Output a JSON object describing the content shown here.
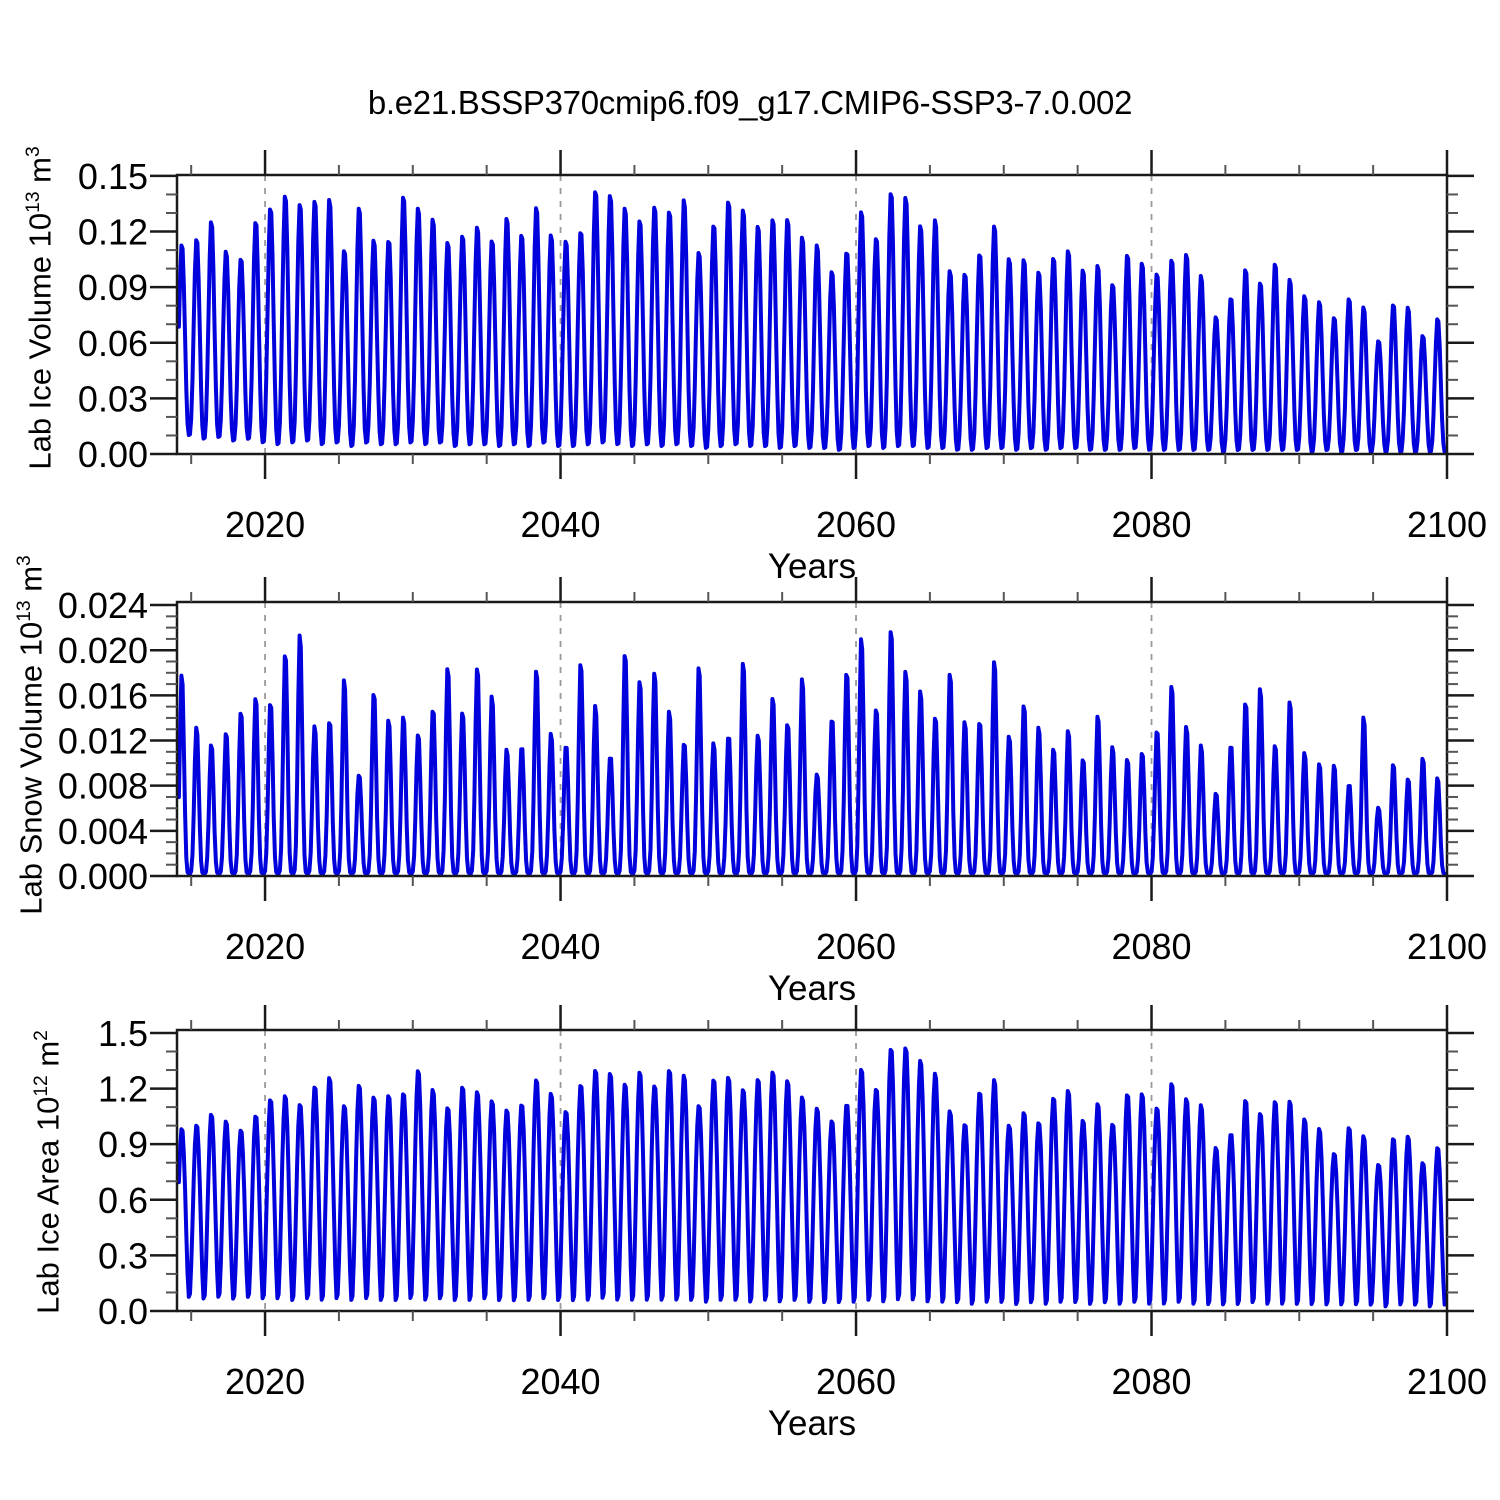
{
  "title": "b.e21.BSSP370cmip6.f09_g17.CMIP6-SSP3-7.0.002",
  "chart_data": {
    "type": "line",
    "subtype": "monthly-seasonal-timeseries",
    "line_color": "#0202dd",
    "gridline_color": "#9a9a9a",
    "axis_color": "#1a1a1a",
    "x_axis": {
      "label": "Years",
      "major_ticks": [
        2020,
        2040,
        2060,
        2080,
        2100
      ],
      "minor_tick_step": 5,
      "dashed_gridlines_at": [
        2020,
        2040,
        2060,
        2080
      ],
      "data_start": 2014.17,
      "data_end": 2099.96
    },
    "series_years_start": 2014,
    "series_years_end": 2099,
    "panels": [
      {
        "id": "ice-volume",
        "ylabel": {
          "pre": "Lab Ice Volume 10",
          "sup1": "13",
          "mid": " m",
          "sup2": "3"
        },
        "ylabel_plain": "Lab Ice Volume 10^13 m^3",
        "xlabel": "Years",
        "ytick_labels": [
          "0.00",
          "0.03",
          "0.06",
          "0.09",
          "0.12",
          "0.15"
        ],
        "ytick_values": [
          0,
          0.03,
          0.06,
          0.09,
          0.12,
          0.15
        ],
        "y_minor_step": 0.01,
        "y_range": [
          0,
          0.15
        ],
        "seasonal_peak_yearfrac": 0.37,
        "seasonal_trough_yearfrac": 0.87,
        "peak_sharpness": 1.35,
        "annual_max": [
          0.114,
          0.117,
          0.127,
          0.11,
          0.106,
          0.127,
          0.134,
          0.141,
          0.136,
          0.138,
          0.139,
          0.11,
          0.135,
          0.116,
          0.116,
          0.141,
          0.134,
          0.128,
          0.115,
          0.119,
          0.124,
          0.116,
          0.129,
          0.119,
          0.135,
          0.119,
          0.116,
          0.121,
          0.144,
          0.141,
          0.134,
          0.127,
          0.135,
          0.132,
          0.139,
          0.109,
          0.125,
          0.138,
          0.133,
          0.124,
          0.128,
          0.128,
          0.118,
          0.114,
          0.099,
          0.11,
          0.133,
          0.117,
          0.143,
          0.14,
          0.124,
          0.128,
          0.099,
          0.098,
          0.109,
          0.125,
          0.106,
          0.106,
          0.099,
          0.107,
          0.111,
          0.1,
          0.103,
          0.092,
          0.109,
          0.104,
          0.098,
          0.106,
          0.109,
          0.097,
          0.074,
          0.085,
          0.101,
          0.093,
          0.104,
          0.095,
          0.086,
          0.083,
          0.074,
          0.085,
          0.08,
          0.061,
          0.082,
          0.08,
          0.064,
          0.074
        ],
        "annual_min": [
          0.01,
          0.008,
          0.009,
          0.007,
          0.008,
          0.006,
          0.005,
          0.006,
          0.007,
          0.005,
          0.006,
          0.004,
          0.006,
          0.005,
          0.005,
          0.006,
          0.005,
          0.006,
          0.004,
          0.005,
          0.005,
          0.004,
          0.005,
          0.004,
          0.006,
          0.004,
          0.004,
          0.005,
          0.006,
          0.005,
          0.004,
          0.005,
          0.004,
          0.005,
          0.004,
          0.003,
          0.004,
          0.005,
          0.004,
          0.004,
          0.003,
          0.004,
          0.003,
          0.003,
          0.002,
          0.003,
          0.004,
          0.003,
          0.004,
          0.004,
          0.003,
          0.003,
          0.002,
          0.002,
          0.003,
          0.003,
          0.002,
          0.003,
          0.002,
          0.003,
          0.003,
          0.002,
          0.002,
          0.002,
          0.003,
          0.002,
          0.002,
          0.002,
          0.002,
          0.002,
          0.001,
          0.002,
          0.002,
          0.002,
          0.002,
          0.002,
          0.001,
          0.002,
          0.001,
          0.002,
          0.001,
          0.001,
          0.001,
          0.001,
          0.001,
          0.001
        ]
      },
      {
        "id": "snow-volume",
        "ylabel": {
          "pre": "Lab Snow Volume 10",
          "sup1": "13",
          "mid": " m",
          "sup2": "3"
        },
        "ylabel_plain": "Lab Snow Volume 10^13 m^3",
        "xlabel": "Years",
        "ytick_labels": [
          "0.000",
          "0.004",
          "0.008",
          "0.012",
          "0.016",
          "0.020",
          "0.024"
        ],
        "ytick_values": [
          0,
          0.004,
          0.008,
          0.012,
          0.016,
          0.02,
          0.024
        ],
        "y_minor_step": 0.001,
        "y_range": [
          0,
          0.024
        ],
        "seasonal_peak_yearfrac": 0.37,
        "seasonal_trough_yearfrac": 0.87,
        "peak_sharpness": 2.3,
        "annual_min_constant": 0.0002,
        "annual_max": [
          0.0182,
          0.0133,
          0.0118,
          0.0129,
          0.0148,
          0.0161,
          0.0155,
          0.0201,
          0.0219,
          0.0133,
          0.0139,
          0.0179,
          0.0088,
          0.0167,
          0.014,
          0.0144,
          0.0127,
          0.015,
          0.0189,
          0.0146,
          0.0189,
          0.0162,
          0.0113,
          0.0115,
          0.0188,
          0.0127,
          0.0116,
          0.0194,
          0.0153,
          0.0105,
          0.0203,
          0.0175,
          0.0184,
          0.0148,
          0.0118,
          0.0191,
          0.0118,
          0.0125,
          0.0195,
          0.0125,
          0.0162,
          0.0136,
          0.018,
          0.0089,
          0.0142,
          0.0184,
          0.0216,
          0.0148,
          0.0224,
          0.0184,
          0.0167,
          0.0142,
          0.0184,
          0.0138,
          0.0138,
          0.0196,
          0.0124,
          0.0155,
          0.0134,
          0.0114,
          0.0132,
          0.0104,
          0.0146,
          0.0116,
          0.0105,
          0.0111,
          0.0131,
          0.0173,
          0.0134,
          0.0118,
          0.0073,
          0.0118,
          0.0157,
          0.017,
          0.0116,
          0.0159,
          0.011,
          0.0101,
          0.01,
          0.0081,
          0.0146,
          0.0059,
          0.0102,
          0.0087,
          0.0107,
          0.0088
        ]
      },
      {
        "id": "ice-area",
        "ylabel": {
          "pre": "Lab Ice Area 10",
          "sup1": "12",
          "mid": " m",
          "sup2": "2"
        },
        "ylabel_plain": "Lab Ice Area 10^12 m^2",
        "xlabel": "Years",
        "ytick_labels": [
          "0.0",
          "0.3",
          "0.6",
          "0.9",
          "1.2",
          "1.5"
        ],
        "ytick_values": [
          0,
          0.3,
          0.6,
          0.9,
          1.2,
          1.5
        ],
        "y_minor_step": 0.1,
        "y_range": [
          0,
          1.5
        ],
        "seasonal_peak_yearfrac": 0.37,
        "seasonal_trough_yearfrac": 0.87,
        "peak_sharpness": 0.9,
        "annual_max": [
          0.99,
          1.01,
          1.07,
          1.03,
          0.98,
          1.06,
          1.15,
          1.17,
          1.12,
          1.22,
          1.27,
          1.11,
          1.23,
          1.16,
          1.17,
          1.18,
          1.31,
          1.2,
          1.1,
          1.22,
          1.19,
          1.14,
          1.09,
          1.12,
          1.26,
          1.18,
          1.08,
          1.23,
          1.31,
          1.29,
          1.23,
          1.3,
          1.22,
          1.31,
          1.28,
          1.11,
          1.26,
          1.27,
          1.2,
          1.26,
          1.3,
          1.25,
          1.16,
          1.1,
          1.03,
          1.12,
          1.32,
          1.2,
          1.43,
          1.43,
          1.36,
          1.29,
          1.08,
          1.01,
          1.19,
          1.26,
          1.0,
          1.08,
          1.02,
          1.16,
          1.2,
          1.03,
          1.13,
          1.01,
          1.18,
          1.18,
          1.1,
          1.24,
          1.15,
          1.12,
          0.88,
          0.96,
          1.15,
          1.07,
          1.14,
          1.14,
          1.04,
          0.99,
          0.85,
          1.0,
          0.95,
          0.79,
          0.94,
          0.95,
          0.8,
          0.89
        ],
        "annual_min": [
          0.06,
          0.05,
          0.06,
          0.05,
          0.06,
          0.05,
          0.05,
          0.04,
          0.05,
          0.04,
          0.05,
          0.04,
          0.05,
          0.04,
          0.04,
          0.05,
          0.04,
          0.05,
          0.04,
          0.04,
          0.05,
          0.04,
          0.04,
          0.04,
          0.05,
          0.04,
          0.04,
          0.04,
          0.05,
          0.04,
          0.04,
          0.04,
          0.04,
          0.04,
          0.04,
          0.03,
          0.04,
          0.04,
          0.03,
          0.04,
          0.03,
          0.04,
          0.03,
          0.03,
          0.03,
          0.03,
          0.04,
          0.03,
          0.04,
          0.04,
          0.03,
          0.03,
          0.03,
          0.02,
          0.03,
          0.03,
          0.02,
          0.03,
          0.02,
          0.03,
          0.03,
          0.02,
          0.03,
          0.02,
          0.03,
          0.02,
          0.02,
          0.03,
          0.02,
          0.02,
          0.02,
          0.02,
          0.03,
          0.02,
          0.02,
          0.02,
          0.02,
          0.02,
          0.02,
          0.02,
          0.02,
          0.01,
          0.02,
          0.02,
          0.01,
          0.02
        ]
      }
    ]
  }
}
